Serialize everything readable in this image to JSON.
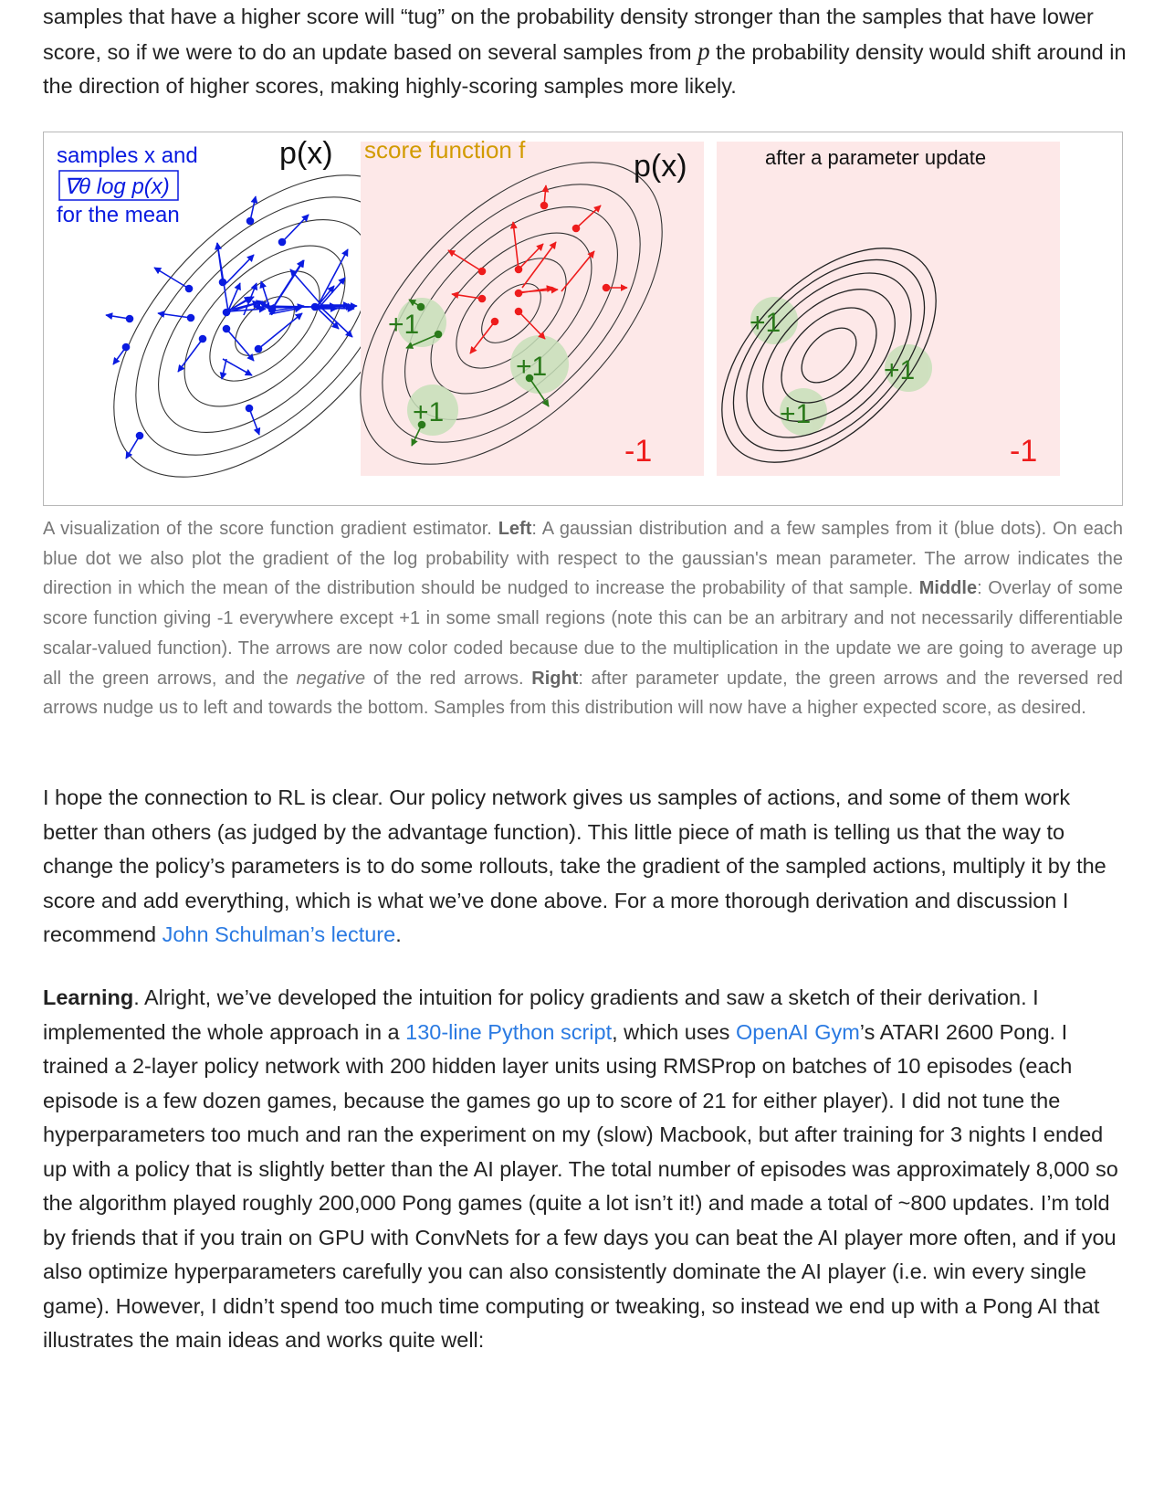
{
  "paragraph1": {
    "text_a": "samples that have a higher score will “tug” on the probability density stronger than the samples that have lower score, so if we were to do an update based on several samples from ",
    "math": "p",
    "text_b": " the probability density would shift around in the direction of higher scores, making highly-scoring samples more likely."
  },
  "figure": {
    "left": {
      "label_line1": "samples x and",
      "label_math": "∇θ log p(x)",
      "label_line3": "for the mean",
      "px_label": "p(x)"
    },
    "middle": {
      "score_label": "score function f",
      "px_label": "p(x)",
      "plus_labels": [
        "+1",
        "+1",
        "+1"
      ],
      "minus_label": "-1"
    },
    "right": {
      "title": "after a parameter update",
      "plus_labels": [
        "+1",
        "+1",
        "+1"
      ],
      "minus_label": "-1"
    },
    "colors": {
      "blue": "#0a1be0",
      "red": "#ee1c1c",
      "green": "#2a7a1a",
      "green_blob": "#c7dfb8",
      "pink_bg": "#fde8e8",
      "orange": "#d29b00"
    }
  },
  "caption": {
    "s1": "A visualization of the score function gradient estimator. ",
    "left_b": "Left",
    "s2": ": A gaussian distribution and a few samples from it (blue dots). On each blue dot we also plot the gradient of the log probability with respect to the gaussian's mean parameter. The arrow indicates the direction in which the mean of the distribution should be nudged to increase the probability of that sample. ",
    "middle_b": "Middle",
    "s3": ": Overlay of some score function giving -1 everywhere except +1 in some small regions (note this can be an arbitrary and not necessarily differentiable scalar-valued function). The arrows are now color coded because due to the multiplication in the update we are going to average up all the green arrows, and the ",
    "neg_i": "negative",
    "s4": " of the red arrows. ",
    "right_b": "Right",
    "s5": ": after parameter update, the green arrows and the reversed red arrows nudge us to left and towards the bottom. Samples from this distribution will now have a higher expected score, as desired."
  },
  "paragraph2": {
    "text": "I hope the connection to RL is clear. Our policy network gives us samples of actions, and some of them work better than others (as judged by the advantage function). This little piece of math is telling us that the way to change the policy’s parameters is to do some rollouts, take the gradient of the sampled actions, multiply it by the score and add everything, which is what we’ve done above. For a more thorough derivation and discussion I recommend ",
    "link": "John Schulman’s lecture",
    "end": "."
  },
  "paragraph3": {
    "bold": "Learning",
    "t1": ". Alright, we’ve developed the intuition for policy gradients and saw a sketch of their derivation. I implemented the whole approach in a ",
    "link1": "130-line Python script",
    "t2": ", which uses ",
    "link2": "OpenAI Gym",
    "t3": "’s ATARI 2600 Pong. I trained a 2-layer policy network with 200 hidden layer units using RMSProp on batches of 10 episodes (each episode is a few dozen games, because the games go up to score of 21 for either player). I did not tune the hyperparameters too much and ran the experiment on my (slow) Macbook, but after training for 3 nights I ended up with a policy that is slightly better than the AI player. The total number of episodes was approximately 8,000 so the algorithm played roughly 200,000 Pong games (quite a lot isn’t it!) and made a total of ~800 updates. I’m told by friends that if you train on GPU with ConvNets for a few days you can beat the AI player more often, and if you also optimize hyperparameters carefully you can also consistently dominate the AI player (i.e. win every single game). However, I didn’t spend too much time computing or tweaking, so instead we end up with a Pong AI that illustrates the main ideas and works quite well:"
  }
}
